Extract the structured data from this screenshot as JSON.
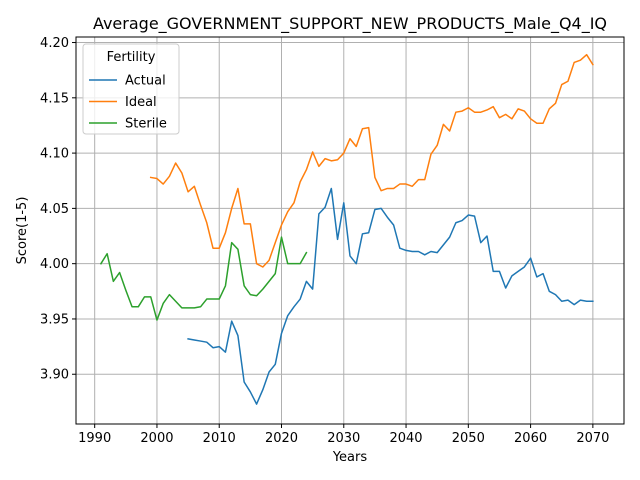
{
  "chart_data": {
    "type": "line",
    "title": "Average_GOVERNMENT_SUPPORT_NEW_PRODUCTS_Male_Q4_IQ",
    "xlabel": "Years",
    "ylabel": "Score(1-5)",
    "xlim": [
      1987,
      2075
    ],
    "ylim": [
      3.855,
      4.205
    ],
    "xticks": [
      1990,
      2000,
      2010,
      2020,
      2030,
      2040,
      2050,
      2060,
      2070
    ],
    "yticks": [
      3.9,
      3.95,
      4.0,
      4.05,
      4.1,
      4.15,
      4.2
    ],
    "xtick_labels": [
      "1990",
      "2000",
      "2010",
      "2020",
      "2030",
      "2040",
      "2050",
      "2060",
      "2070"
    ],
    "ytick_labels": [
      "3.90",
      "3.95",
      "4.00",
      "4.05",
      "4.10",
      "4.15",
      "4.20"
    ],
    "grid": true,
    "legend": {
      "title": "Fertility",
      "position": "top-left"
    },
    "series": [
      {
        "name": "Actual",
        "color": "#1f77b4",
        "x": [
          2005,
          2006,
          2007,
          2008,
          2009,
          2010,
          2011,
          2012,
          2013,
          2014,
          2015,
          2016,
          2017,
          2018,
          2019,
          2020,
          2021,
          2022,
          2023,
          2024,
          2025,
          2026,
          2027,
          2028,
          2029,
          2030,
          2031,
          2032,
          2033,
          2034,
          2035,
          2036,
          2037,
          2038,
          2039,
          2040,
          2041,
          2042,
          2043,
          2044,
          2045,
          2046,
          2047,
          2048,
          2049,
          2050,
          2051,
          2052,
          2053,
          2054,
          2055,
          2056,
          2057,
          2058,
          2059,
          2060,
          2061,
          2062,
          2063,
          2064,
          2065,
          2066,
          2067,
          2068,
          2069,
          2070
        ],
        "y": [
          3.932,
          3.931,
          3.93,
          3.929,
          3.924,
          3.925,
          3.92,
          3.948,
          3.935,
          3.893,
          3.884,
          3.873,
          3.886,
          3.902,
          3.909,
          3.937,
          3.953,
          3.961,
          3.968,
          3.984,
          3.977,
          4.045,
          4.051,
          4.068,
          4.022,
          4.055,
          4.007,
          4.0,
          4.027,
          4.028,
          4.049,
          4.05,
          4.042,
          4.035,
          4.014,
          4.012,
          4.011,
          4.011,
          4.008,
          4.011,
          4.01,
          4.017,
          4.024,
          4.037,
          4.039,
          4.044,
          4.043,
          4.019,
          4.025,
          3.993,
          3.993,
          3.978,
          3.989,
          3.993,
          3.997,
          4.005,
          3.988,
          3.991,
          3.975,
          3.972,
          3.966,
          3.967,
          3.963,
          3.967,
          3.966,
          3.966
        ]
      },
      {
        "name": "Ideal",
        "color": "#ff7f0e",
        "x": [
          1999,
          2000,
          2001,
          2002,
          2003,
          2004,
          2005,
          2006,
          2007,
          2008,
          2009,
          2010,
          2011,
          2012,
          2013,
          2014,
          2015,
          2016,
          2017,
          2018,
          2019,
          2020,
          2021,
          2022,
          2023,
          2024,
          2025,
          2026,
          2027,
          2028,
          2029,
          2030,
          2031,
          2032,
          2033,
          2034,
          2035,
          2036,
          2037,
          2038,
          2039,
          2040,
          2041,
          2042,
          2043,
          2044,
          2045,
          2046,
          2047,
          2048,
          2049,
          2050,
          2051,
          2052,
          2053,
          2054,
          2055,
          2056,
          2057,
          2058,
          2059,
          2060,
          2061,
          2062,
          2063,
          2064,
          2065,
          2066,
          2067,
          2068,
          2069,
          2070
        ],
        "y": [
          4.078,
          4.077,
          4.072,
          4.079,
          4.091,
          4.082,
          4.065,
          4.07,
          4.053,
          4.037,
          4.014,
          4.014,
          4.028,
          4.05,
          4.068,
          4.036,
          4.036,
          4.0,
          3.997,
          4.003,
          4.019,
          4.035,
          4.047,
          4.055,
          4.074,
          4.085,
          4.101,
          4.088,
          4.095,
          4.093,
          4.094,
          4.1,
          4.113,
          4.106,
          4.122,
          4.123,
          4.078,
          4.066,
          4.068,
          4.068,
          4.072,
          4.072,
          4.07,
          4.076,
          4.076,
          4.099,
          4.107,
          4.126,
          4.12,
          4.137,
          4.138,
          4.141,
          4.137,
          4.137,
          4.139,
          4.142,
          4.132,
          4.135,
          4.131,
          4.14,
          4.138,
          4.131,
          4.127,
          4.127,
          4.14,
          4.145,
          4.162,
          4.165,
          4.182,
          4.184,
          4.189,
          4.18
        ]
      },
      {
        "name": "Sterile",
        "color": "#2ca02c",
        "x": [
          1991,
          1992,
          1993,
          1994,
          1995,
          1996,
          1997,
          1998,
          1999,
          2000,
          2001,
          2002,
          2003,
          2004,
          2005,
          2006,
          2007,
          2008,
          2009,
          2010,
          2011,
          2012,
          2013,
          2014,
          2015,
          2016,
          2017,
          2018,
          2019,
          2020,
          2021,
          2022,
          2023,
          2024
        ],
        "y": [
          4.0,
          4.009,
          3.984,
          3.992,
          3.976,
          3.961,
          3.961,
          3.97,
          3.97,
          3.949,
          3.964,
          3.972,
          3.966,
          3.96,
          3.96,
          3.96,
          3.961,
          3.968,
          3.968,
          3.968,
          3.98,
          4.019,
          4.013,
          3.98,
          3.972,
          3.971,
          3.977,
          3.984,
          3.991,
          4.024,
          4.0,
          4.0,
          4.0,
          4.01
        ]
      }
    ]
  }
}
